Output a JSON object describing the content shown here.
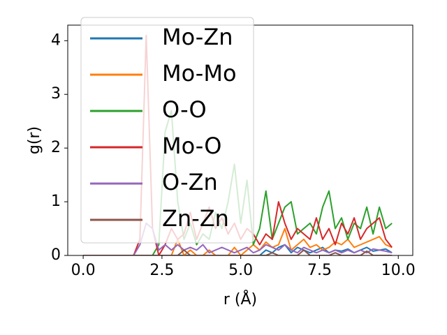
{
  "chart_data": {
    "type": "line",
    "x_label": "r (Å)",
    "y_label": "g(r)",
    "x": [
      0.0,
      0.2,
      0.4,
      0.6,
      0.8,
      1.0,
      1.2,
      1.4,
      1.6,
      1.8,
      2.0,
      2.2,
      2.4,
      2.6,
      2.8,
      3.0,
      3.2,
      3.4,
      3.6,
      3.8,
      4.0,
      4.2,
      4.4,
      4.6,
      4.8,
      5.0,
      5.2,
      5.4,
      5.6,
      5.8,
      6.0,
      6.2,
      6.4,
      6.6,
      6.8,
      7.0,
      7.2,
      7.4,
      7.6,
      7.8,
      8.0,
      8.2,
      8.4,
      8.6,
      8.8,
      9.0,
      9.2,
      9.4,
      9.6,
      9.8
    ],
    "series": [
      {
        "name": "Mo-Zn",
        "color": "#1f77b4",
        "values": [
          0,
          0,
          0,
          0,
          0,
          0,
          0,
          0,
          0,
          0,
          0,
          0,
          0,
          0,
          0,
          0,
          0,
          0,
          0,
          0,
          0,
          0,
          0,
          0,
          0,
          0,
          0,
          0,
          0,
          0.1,
          0.05,
          0.15,
          0.2,
          0.05,
          0.15,
          0.1,
          0.05,
          0.1,
          0.15,
          0.05,
          0.1,
          0.08,
          0.12,
          0.05,
          0.1,
          0.15,
          0.08,
          0.1,
          0.12,
          0.05
        ]
      },
      {
        "name": "Mo-Mo",
        "color": "#ff7f0e",
        "values": [
          0,
          0,
          0,
          0,
          0,
          0,
          0,
          0,
          0,
          0,
          0,
          0,
          0,
          0,
          0,
          0.3,
          0,
          0.1,
          0,
          0,
          0.1,
          0,
          0,
          0,
          0.15,
          0,
          0.1,
          0.2,
          0.1,
          0.25,
          0.15,
          0.2,
          0.5,
          0.1,
          0.2,
          0.3,
          0.15,
          0.2,
          0.1,
          0.15,
          0.25,
          0.2,
          0.3,
          0.15,
          0.2,
          0.25,
          0.3,
          0.35,
          0.2,
          0.15
        ]
      },
      {
        "name": "O-O",
        "color": "#2ca02c",
        "values": [
          0,
          0,
          0,
          0,
          0,
          0,
          0,
          0,
          0,
          0,
          0,
          0,
          0.2,
          2.3,
          2.7,
          1.0,
          0.3,
          0.6,
          0.2,
          0.4,
          0.3,
          0.8,
          0.5,
          1.0,
          1.7,
          0.6,
          1.4,
          0.2,
          0.5,
          1.2,
          0.3,
          0.6,
          0.9,
          1.0,
          0.4,
          0.5,
          0.6,
          0.4,
          0.9,
          1.2,
          0.5,
          0.7,
          0.3,
          0.6,
          0.5,
          0.9,
          0.4,
          0.9,
          0.5,
          0.6
        ]
      },
      {
        "name": "Mo-O",
        "color": "#d62728",
        "values": [
          0,
          0,
          0,
          0,
          0,
          0,
          0,
          0,
          0,
          0.3,
          4.1,
          0.5,
          0,
          0.2,
          0.5,
          0.3,
          0.4,
          0.8,
          0.3,
          0.6,
          0.9,
          0.5,
          0.7,
          0.4,
          0.6,
          0.3,
          0.5,
          0.4,
          0.2,
          0.4,
          0.3,
          1.0,
          0.6,
          0.3,
          0.5,
          0.4,
          0.3,
          0.7,
          0.3,
          0.5,
          0.2,
          0.6,
          0.4,
          0.7,
          0.3,
          0.5,
          0.6,
          0.7,
          0.3,
          0.15
        ]
      },
      {
        "name": "O-Zn",
        "color": "#9467bd",
        "values": [
          0,
          0,
          0,
          0,
          0,
          0,
          0,
          0,
          0,
          0.2,
          0.6,
          0.5,
          0.1,
          0.2,
          0.1,
          0.2,
          0.1,
          0.15,
          0.1,
          0.2,
          0.05,
          0.1,
          0.15,
          0.1,
          0.05,
          0.1,
          0.15,
          0.05,
          0.1,
          0.2,
          0.15,
          0.1,
          0.2,
          0.1,
          0.05,
          0.15,
          0.1,
          0.05,
          0.1,
          0.05,
          0.1,
          0.05,
          0.1,
          0.05,
          0.1,
          0.05,
          0.12,
          0.1,
          0.08,
          0.05
        ]
      },
      {
        "name": "Zn-Zn",
        "color": "#8c564b",
        "values": [
          0,
          0,
          0,
          0,
          0,
          0,
          0,
          0,
          0,
          0,
          0,
          0,
          0,
          0,
          0,
          0,
          0.1,
          0,
          0,
          0,
          0,
          0,
          0,
          0,
          0,
          0,
          0,
          0,
          0,
          0,
          0.05,
          0,
          0,
          0,
          0,
          0.1,
          0,
          0,
          0,
          0,
          0.05,
          0,
          0,
          0,
          0,
          0.08,
          0,
          0,
          0,
          0
        ]
      }
    ],
    "xlim": [
      -0.49,
      10.46
    ],
    "ylim": [
      0,
      4.29
    ],
    "xticks": [
      {
        "value": 0,
        "label": "0.0"
      },
      {
        "value": 2.5,
        "label": "2.5"
      },
      {
        "value": 5,
        "label": "5.0"
      },
      {
        "value": 7.5,
        "label": "7.5"
      },
      {
        "value": 10,
        "label": "10.0"
      }
    ],
    "yticks": [
      0,
      1,
      2,
      3,
      4
    ],
    "legend": "upper left"
  }
}
